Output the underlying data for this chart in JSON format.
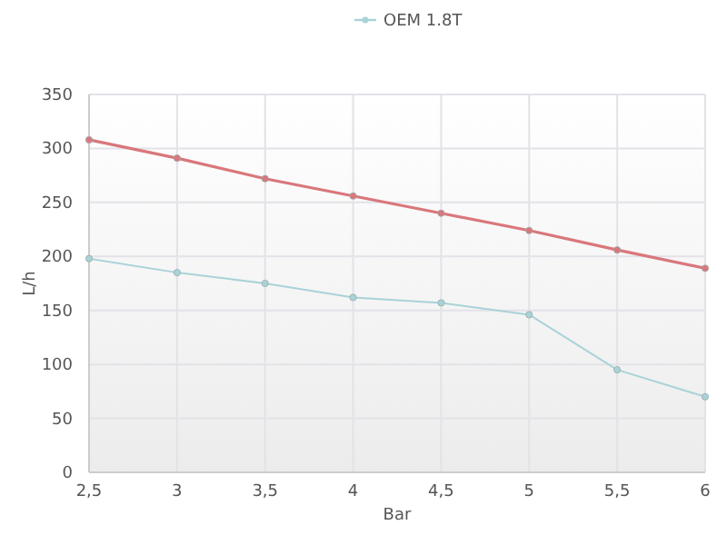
{
  "chart_data": {
    "type": "line",
    "xlabel": "Bar",
    "ylabel": "L/h",
    "x": [
      2.5,
      3,
      3.5,
      4,
      4.5,
      5,
      5.5,
      6
    ],
    "series": [
      {
        "color": "#d9777b",
        "values": [
          308,
          291,
          272,
          256,
          240,
          224,
          206,
          189
        ]
      },
      {
        "name": "OEM 1.8T",
        "color": "#a9d3d8",
        "values": [
          198,
          185,
          175,
          162,
          157,
          146,
          95,
          70
        ]
      }
    ],
    "xlim": [
      2.5,
      6
    ],
    "xticks": [
      {
        "value": 2.5,
        "label": "2,5"
      },
      3,
      {
        "value": 3.5,
        "label": "3,5"
      },
      4,
      {
        "value": 4.5,
        "label": "4,5"
      },
      5,
      {
        "value": 5.5,
        "label": "5,5"
      },
      6
    ],
    "ylim": [
      0,
      350
    ],
    "yticks": [
      0,
      50,
      100,
      150,
      200,
      250,
      300,
      350
    ],
    "grid": true,
    "legend": "top",
    "marker": "circle",
    "line_style": "solid"
  }
}
